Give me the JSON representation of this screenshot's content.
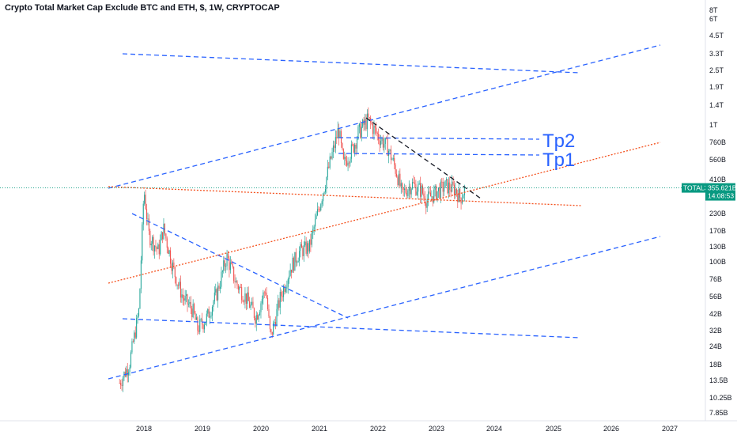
{
  "chart_data": {
    "type": "candlestick",
    "title": "Crypto Total Market Cap Exclude BTC and ETH, $, 1W, CRYPTOCAP",
    "symbol": "TOTAL3",
    "last_price": "355.621B",
    "countdown": "14:08:53",
    "y_scale": "log",
    "y_ticks": [
      "8T",
      "6T",
      "4.5T",
      "3.3T",
      "2.5T",
      "1.9T",
      "1.4T",
      "1T",
      "760B",
      "560B",
      "410B",
      "230B",
      "170B",
      "130B",
      "100B",
      "76B",
      "56B",
      "42B",
      "32B",
      "24B",
      "18B",
      "13.5B",
      "10.25B",
      "7.85B"
    ],
    "x_ticks": [
      "2018",
      "2019",
      "2020",
      "2021",
      "2022",
      "2023",
      "2024",
      "2025",
      "2026",
      "2027"
    ],
    "annotations": [
      "Tp2",
      "Tp1"
    ],
    "colors": {
      "up": "#26a69a",
      "down": "#ef5350",
      "blue_line": "#2962ff",
      "orange_line": "#f4511e",
      "black_line": "#131722",
      "price_label": "#089981"
    },
    "price_path": [
      [
        "2017-08",
        13
      ],
      [
        "2017-10",
        18
      ],
      [
        "2017-12",
        45
      ],
      [
        "2018-01",
        350
      ],
      [
        "2018-02",
        160
      ],
      [
        "2018-04",
        120
      ],
      [
        "2018-05",
        180
      ],
      [
        "2018-07",
        90
      ],
      [
        "2018-09",
        55
      ],
      [
        "2018-11",
        45
      ],
      [
        "2018-12",
        33
      ],
      [
        "2019-02",
        40
      ],
      [
        "2019-04",
        60
      ],
      [
        "2019-06",
        110
      ],
      [
        "2019-08",
        70
      ],
      [
        "2019-10",
        55
      ],
      [
        "2019-12",
        40
      ],
      [
        "2020-02",
        65
      ],
      [
        "2020-03",
        28
      ],
      [
        "2020-05",
        55
      ],
      [
        "2020-07",
        90
      ],
      [
        "2020-09",
        120
      ],
      [
        "2020-11",
        130
      ],
      [
        "2021-01",
        260
      ],
      [
        "2021-03",
        500
      ],
      [
        "2021-05",
        950
      ],
      [
        "2021-06",
        520
      ],
      [
        "2021-08",
        700
      ],
      [
        "2021-09",
        880
      ],
      [
        "2021-11",
        1100
      ],
      [
        "2022-01",
        850
      ],
      [
        "2022-03",
        700
      ],
      [
        "2022-05",
        450
      ],
      [
        "2022-06",
        320
      ],
      [
        "2022-08",
        380
      ],
      [
        "2022-10",
        340
      ],
      [
        "2022-11",
        290
      ],
      [
        "2023-01",
        330
      ],
      [
        "2023-03",
        370
      ],
      [
        "2023-05",
        345
      ],
      [
        "2023-06",
        300
      ],
      [
        "2023-07",
        355.621
      ]
    ]
  }
}
